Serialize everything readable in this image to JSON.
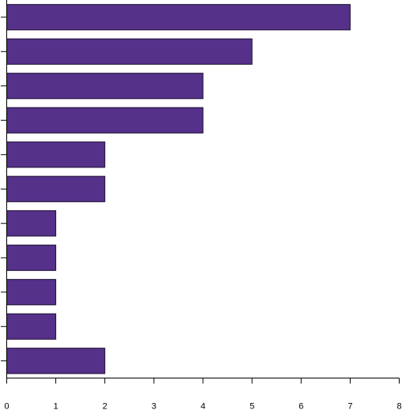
{
  "chart_data": {
    "type": "bar",
    "orientation": "horizontal",
    "categories": [
      "",
      "",
      "",
      "",
      "",
      "",
      "",
      "",
      "",
      "",
      ""
    ],
    "values": [
      7,
      5,
      4,
      4,
      2,
      2,
      1,
      1,
      1,
      1,
      2
    ],
    "xlim": [
      0,
      8
    ],
    "x_ticks": [
      "0",
      "1",
      "2",
      "3",
      "4",
      "5",
      "6",
      "7",
      "8"
    ],
    "grid": false,
    "legend": "none",
    "bar_color": "#55318a",
    "bar_edge_color": "#1e0f33"
  }
}
